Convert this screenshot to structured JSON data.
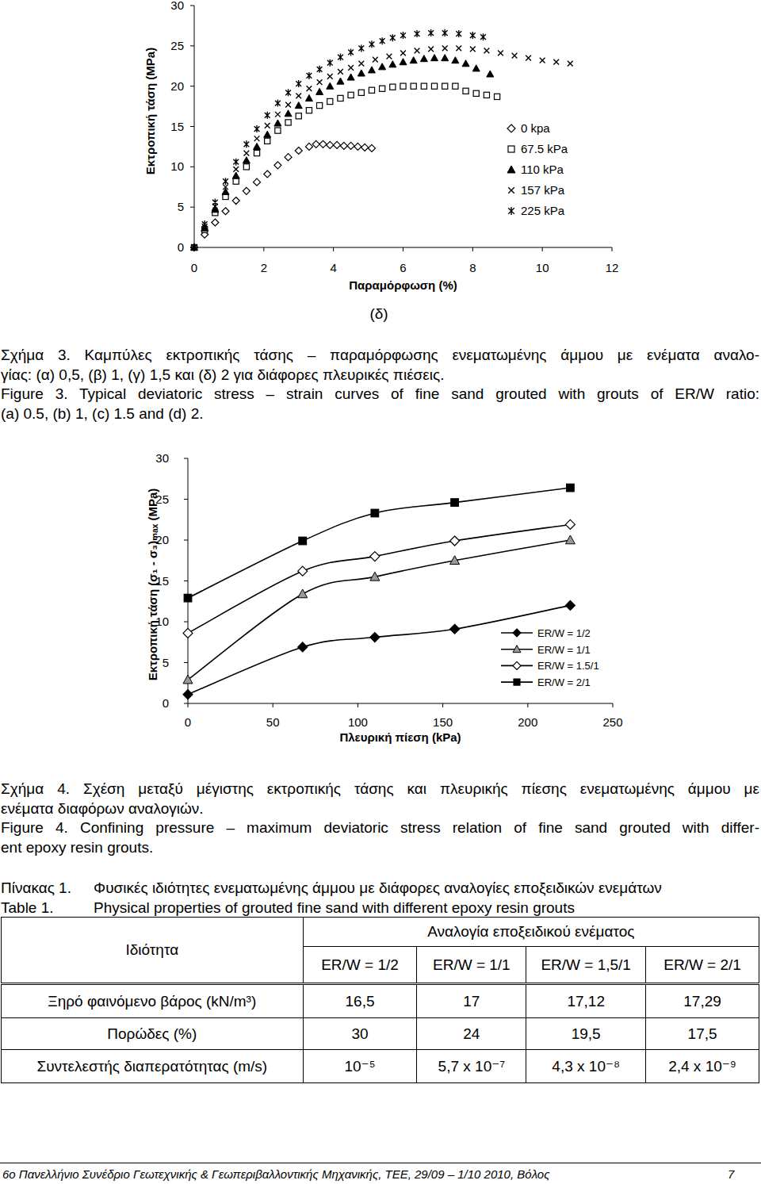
{
  "chart_data": [
    {
      "type": "scatter",
      "xlabel": "Παραμόρφωση (%)",
      "ylabel": "Εκτροπική τάση (MPa)",
      "annotations": [
        "(δ)"
      ],
      "xlim": [
        0,
        12
      ],
      "xticks": [
        0,
        2,
        4,
        6,
        8,
        10,
        12
      ],
      "ylim": [
        0,
        30
      ],
      "yticks": [
        0,
        5,
        10,
        15,
        20,
        25,
        30
      ],
      "legend": "right",
      "series": [
        {
          "name": "0 kpa",
          "color": "#000000",
          "marker": "diamond-open",
          "x": [
            0,
            0.3,
            0.6,
            0.9,
            1.2,
            1.5,
            1.8,
            2.1,
            2.4,
            2.7,
            3.0,
            3.3,
            3.5,
            3.7,
            3.9,
            4.1,
            4.3,
            4.5,
            4.7,
            4.9,
            5.1
          ],
          "values": [
            0,
            1.6,
            3.1,
            4.5,
            5.8,
            7,
            8.1,
            9.1,
            10.2,
            11.2,
            12,
            12.5,
            12.8,
            12.8,
            12.7,
            12.7,
            12.6,
            12.6,
            12.5,
            12.4,
            12.3
          ]
        },
        {
          "name": "67.5 kPa",
          "color": "#000000",
          "marker": "square-open",
          "x": [
            0,
            0.3,
            0.6,
            0.9,
            1.2,
            1.5,
            1.8,
            2.1,
            2.4,
            2.7,
            3.0,
            3.3,
            3.6,
            3.9,
            4.2,
            4.5,
            4.8,
            5.1,
            5.4,
            5.7,
            6.0,
            6.3,
            6.6,
            6.9,
            7.2,
            7.5,
            7.8,
            8.1,
            8.4,
            8.7
          ],
          "values": [
            0,
            2.2,
            4.3,
            6.3,
            8.2,
            10,
            11.7,
            13.2,
            14.5,
            15.5,
            16.3,
            17,
            17.6,
            18.1,
            18.5,
            18.9,
            19.2,
            19.5,
            19.7,
            19.9,
            20,
            20,
            20,
            20,
            20,
            20,
            19.4,
            19.1,
            18.9,
            18.7
          ]
        },
        {
          "name": "110 kPa",
          "color": "#000000",
          "marker": "triangle",
          "x": [
            0,
            0.3,
            0.6,
            0.9,
            1.2,
            1.5,
            1.8,
            2.1,
            2.4,
            2.7,
            3.0,
            3.3,
            3.6,
            3.9,
            4.2,
            4.5,
            4.8,
            5.1,
            5.4,
            5.7,
            6.0,
            6.3,
            6.6,
            6.9,
            7.2,
            7.5,
            7.8,
            8.1,
            8.5
          ],
          "values": [
            0,
            2.4,
            4.7,
            6.9,
            8.9,
            10.8,
            12.5,
            14,
            15.4,
            16.6,
            17.6,
            18.5,
            19.3,
            20,
            20.6,
            21.1,
            21.6,
            22,
            22.4,
            22.7,
            23,
            23.2,
            23.4,
            23.5,
            23.5,
            23.2,
            22.8,
            22.2,
            21.5
          ]
        },
        {
          "name": "157 kPa",
          "color": "#000000",
          "marker": "x",
          "x": [
            0,
            0.3,
            0.6,
            0.9,
            1.2,
            1.5,
            1.8,
            2.1,
            2.4,
            2.7,
            3.0,
            3.3,
            3.6,
            3.9,
            4.2,
            4.5,
            4.8,
            5.2,
            5.6,
            6.0,
            6.4,
            6.8,
            7.2,
            7.6,
            8.0,
            8.4,
            8.8,
            9.2,
            9.6,
            10.0,
            10.4,
            10.8
          ],
          "values": [
            0,
            2.6,
            5.1,
            7.5,
            9.7,
            11.7,
            13.5,
            15.1,
            16.5,
            17.7,
            18.8,
            19.7,
            20.5,
            21.2,
            21.8,
            22.3,
            22.8,
            23.3,
            23.7,
            24.1,
            24.4,
            24.6,
            24.7,
            24.7,
            24.6,
            24.4,
            24.1,
            23.8,
            23.5,
            23.2,
            23,
            22.8
          ]
        },
        {
          "name": "225 kPa",
          "color": "#000000",
          "marker": "asterisk",
          "x": [
            0,
            0.3,
            0.6,
            0.9,
            1.2,
            1.5,
            1.8,
            2.1,
            2.4,
            2.7,
            3.0,
            3.3,
            3.6,
            3.9,
            4.2,
            4.5,
            4.8,
            5.1,
            5.4,
            5.7,
            6.0,
            6.4,
            6.8,
            7.2,
            7.6,
            8.0,
            8.3
          ],
          "values": [
            0,
            2.9,
            5.6,
            8.2,
            10.6,
            12.8,
            14.7,
            16.4,
            17.9,
            19.2,
            20.3,
            21.3,
            22.1,
            22.9,
            23.6,
            24.2,
            24.7,
            25.2,
            25.6,
            26,
            26.3,
            26.5,
            26.6,
            26.6,
            26.5,
            26.3,
            26.1
          ]
        }
      ]
    },
    {
      "type": "line",
      "xlabel": "Πλευρική πίεση (kPa)",
      "ylabel": "Εκτροπική τάση (σ₁ - σ₃)ₘₐₓ (MPa)",
      "x": [
        0,
        67.5,
        110,
        157,
        225
      ],
      "xlim": [
        0,
        250
      ],
      "xticks": [
        0,
        50,
        100,
        150,
        200,
        250
      ],
      "ylim": [
        0,
        30
      ],
      "yticks": [
        0,
        5,
        10,
        15,
        20,
        25,
        30
      ],
      "legend": "right",
      "series": [
        {
          "name": "ER/W = 1/2",
          "color": "#000000",
          "marker": "diamond",
          "values": [
            1.1,
            6.9,
            8.1,
            9.1,
            12
          ]
        },
        {
          "name": "ER/W = 1/1",
          "color": "#999999",
          "marker": "triangle",
          "values": [
            2.9,
            13.4,
            15.5,
            17.5,
            20
          ]
        },
        {
          "name": "ER/W = 1.5/1",
          "color": "#000000",
          "marker": "diamond-open",
          "values": [
            8.6,
            16.2,
            18,
            19.9,
            21.9
          ]
        },
        {
          "name": "ER/W = 2/1",
          "color": "#000000",
          "marker": "square",
          "values": [
            12.9,
            19.9,
            23.3,
            24.6,
            26.4
          ]
        }
      ]
    }
  ],
  "figure3_caption": [
    "Σχήμα 3. Καμπύλες εκτροπικής τάσης – παραμόρφωσης ενεματωμένης άμμου με ενέματα αναλο-",
    "γίας: (α) 0,5, (β) 1, (γ) 1,5 και (δ) 2 για διάφορες πλευρικές πιέσεις.",
    "Figure 3. Typical deviatoric stress – strain curves of fine sand grouted with grouts of ER/W ratio:",
    "(a) 0.5, (b) 1, (c) 1.5 and (d) 2."
  ],
  "figure4_caption": [
    "Σχήμα 4. Σχέση μεταξύ μέγιστης εκτροπικής τάσης και πλευρικής πίεσης ενεματωμένης άμμου με",
    "ενέματα διαφόρων αναλογιών.",
    "Figure 4. Confining pressure – maximum deviatoric stress relation of fine sand grouted with differ-",
    "ent epoxy resin grouts."
  ],
  "table": {
    "caption": [
      {
        "label": "Πίνακας 1.",
        "text": "Φυσικές ιδιότητες ενεματωμένης άμμου με διάφορες αναλογίες εποξειδικών ενεμάτων"
      },
      {
        "label": "Table 1.",
        "text": "Physical properties of grouted fine sand with different epoxy resin grouts"
      }
    ],
    "header": {
      "property": "Ιδιότητα",
      "group": "Αναλογία εποξειδικού ενέματος",
      "columns": [
        "ER/W = 1/2",
        "ER/W = 1/1",
        "ER/W = 1,5/1",
        "ER/W = 2/1"
      ]
    },
    "rows": [
      [
        "Ξηρό φαινόμενο βάρος (kN/m³)",
        "16,5",
        "17",
        "17,12",
        "17,29"
      ],
      [
        "Πορώδες (%)",
        "30",
        "24",
        "19,5",
        "17,5"
      ],
      [
        "Συντελεστής διαπερατότητας (m/s)",
        "10⁻⁵",
        "5,7 x 10⁻⁷",
        "4,3 x 10⁻⁸",
        "2,4 x 10⁻⁹"
      ]
    ]
  },
  "footer": {
    "text": "6ο Πανελλήνιο Συνέδριο Γεωτεχνικής & Γεωπεριβαλλοντικής Μηχανικής, ΤΕΕ, 29/09 – 1/10 2010, Βόλος",
    "page": "7"
  }
}
